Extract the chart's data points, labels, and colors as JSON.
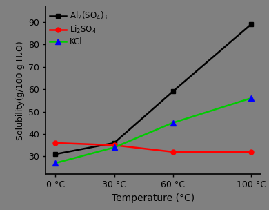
{
  "xlabel": "Temperature (°C)",
  "ylabel": "Solubility(g/100 g H₂O)",
  "background_color": "#808080",
  "temperatures": [
    0,
    30,
    60,
    100
  ],
  "al2so43": [
    31,
    36,
    59,
    89
  ],
  "li2so4": [
    36,
    35,
    32,
    32
  ],
  "kcl": [
    27,
    34,
    45,
    56
  ],
  "al_color": "#000000",
  "li_color": "#ff0000",
  "kcl_color": "#00cc00",
  "kcl_marker_color": "#0000ff",
  "ylim": [
    22,
    97
  ],
  "yticks": [
    30,
    40,
    50,
    60,
    70,
    80,
    90
  ],
  "xtick_labels": [
    "0 °C",
    "30 °C",
    "60 °C",
    "100 °C"
  ],
  "legend_al": "Al$_2$(SO$_4$)$_3$",
  "legend_li": "Li$_2$SO$_4$",
  "legend_kcl": "KCl",
  "xlabel_fontsize": 10,
  "ylabel_fontsize": 9,
  "tick_fontsize": 9,
  "legend_fontsize": 8.5
}
